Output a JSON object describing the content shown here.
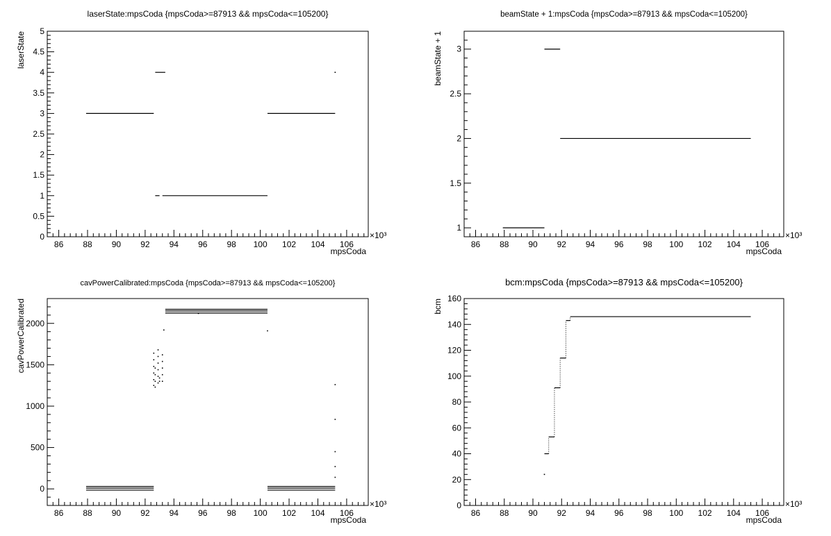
{
  "chart_data": [
    {
      "type": "scatter",
      "title": "laserState:mpsCoda {mpsCoda>=87913 && mpsCoda<=105200}",
      "xlabel": "mpsCoda",
      "ylabel": "laserState",
      "x_exponent": "×10³",
      "xlim": [
        85.2,
        107.5
      ],
      "ylim": [
        0,
        5
      ],
      "x_ticks": [
        86,
        88,
        90,
        92,
        94,
        96,
        98,
        100,
        102,
        104,
        106
      ],
      "y_ticks": [
        0,
        0.5,
        1,
        1.5,
        2,
        2.5,
        3,
        3.5,
        4,
        4.5,
        5
      ],
      "segments": [
        {
          "x": [
            87.9,
            92.6
          ],
          "y": 3
        },
        {
          "x": [
            92.7,
            93.4
          ],
          "y": 4
        },
        {
          "x": [
            92.7,
            93.0
          ],
          "y": 1
        },
        {
          "x": [
            93.2,
            100.5
          ],
          "y": 1
        },
        {
          "x": [
            100.5,
            105.2
          ],
          "y": 3
        }
      ],
      "points": [
        {
          "x": 105.2,
          "y": 4
        }
      ]
    },
    {
      "type": "scatter",
      "title": "beamState + 1:mpsCoda {mpsCoda>=87913 && mpsCoda<=105200}",
      "xlabel": "mpsCoda",
      "ylabel": "beamState + 1",
      "x_exponent": "×10³",
      "xlim": [
        85.2,
        107.5
      ],
      "ylim": [
        0.9,
        3.2
      ],
      "x_ticks": [
        86,
        88,
        90,
        92,
        94,
        96,
        98,
        100,
        102,
        104,
        106
      ],
      "y_ticks": [
        1,
        1.5,
        2,
        2.5,
        3
      ],
      "segments": [
        {
          "x": [
            87.9,
            90.8
          ],
          "y": 1
        },
        {
          "x": [
            90.8,
            91.9
          ],
          "y": 3
        },
        {
          "x": [
            91.9,
            105.2
          ],
          "y": 2
        }
      ],
      "points": []
    },
    {
      "type": "scatter",
      "title": "cavPowerCalibrated:mpsCoda {mpsCoda>=87913 && mpsCoda<=105200}",
      "xlabel": "mpsCoda",
      "ylabel": "cavPowerCalibrated",
      "x_exponent": "×10³",
      "xlim": [
        85.2,
        107.5
      ],
      "ylim": [
        -200,
        2300
      ],
      "x_ticks": [
        86,
        88,
        90,
        92,
        94,
        96,
        98,
        100,
        102,
        104,
        106
      ],
      "y_ticks": [
        0,
        500,
        1000,
        1500,
        2000
      ],
      "segments": [
        {
          "x": [
            87.9,
            92.6
          ],
          "y": 30
        },
        {
          "x": [
            87.9,
            92.6
          ],
          "y": 10
        },
        {
          "x": [
            87.9,
            92.6
          ],
          "y": -15
        },
        {
          "x": [
            93.4,
            100.5
          ],
          "y": 2170
        },
        {
          "x": [
            93.4,
            100.5
          ],
          "y": 2150
        },
        {
          "x": [
            93.4,
            100.5
          ],
          "y": 2125
        },
        {
          "x": [
            100.5,
            105.2
          ],
          "y": 30
        },
        {
          "x": [
            100.5,
            105.2
          ],
          "y": 10
        },
        {
          "x": [
            100.5,
            105.2
          ],
          "y": -15
        }
      ],
      "points": [
        {
          "x": 92.6,
          "y": 1250
        },
        {
          "x": 92.6,
          "y": 1320
        },
        {
          "x": 92.6,
          "y": 1400
        },
        {
          "x": 92.6,
          "y": 1480
        },
        {
          "x": 92.6,
          "y": 1560
        },
        {
          "x": 92.6,
          "y": 1640
        },
        {
          "x": 92.7,
          "y": 1230
        },
        {
          "x": 92.7,
          "y": 1300
        },
        {
          "x": 92.7,
          "y": 1380
        },
        {
          "x": 92.7,
          "y": 1460
        },
        {
          "x": 92.9,
          "y": 1280
        },
        {
          "x": 92.9,
          "y": 1360
        },
        {
          "x": 92.9,
          "y": 1440
        },
        {
          "x": 92.9,
          "y": 1520
        },
        {
          "x": 92.9,
          "y": 1600
        },
        {
          "x": 92.9,
          "y": 1680
        },
        {
          "x": 93.0,
          "y": 1300
        },
        {
          "x": 93.0,
          "y": 1340
        },
        {
          "x": 93.2,
          "y": 1300
        },
        {
          "x": 93.2,
          "y": 1380
        },
        {
          "x": 93.2,
          "y": 1460
        },
        {
          "x": 93.2,
          "y": 1540
        },
        {
          "x": 93.2,
          "y": 1620
        },
        {
          "x": 93.3,
          "y": 1920
        },
        {
          "x": 95.7,
          "y": 2120
        },
        {
          "x": 100.5,
          "y": 1910
        },
        {
          "x": 105.2,
          "y": 1260
        },
        {
          "x": 105.2,
          "y": 840
        },
        {
          "x": 105.2,
          "y": 450
        },
        {
          "x": 105.2,
          "y": 270
        },
        {
          "x": 105.2,
          "y": 140
        }
      ]
    },
    {
      "type": "scatter",
      "title": "bcm:mpsCoda {mpsCoda>=87913 && mpsCoda<=105200}",
      "xlabel": "mpsCoda",
      "ylabel": "bcm",
      "x_exponent": "×10³",
      "xlim": [
        85.2,
        107.5
      ],
      "ylim": [
        0,
        160
      ],
      "x_ticks": [
        86,
        88,
        90,
        92,
        94,
        96,
        98,
        100,
        102,
        104,
        106
      ],
      "y_ticks": [
        0,
        20,
        40,
        60,
        80,
        100,
        120,
        140,
        160
      ],
      "segments": [
        {
          "x": [
            90.8,
            91.1
          ],
          "y": 40
        },
        {
          "x": [
            91.1,
            91.5
          ],
          "y": 53
        },
        {
          "x": [
            91.5,
            91.9
          ],
          "y": 91
        },
        {
          "x": [
            91.9,
            92.3
          ],
          "y": 114
        },
        {
          "x": [
            92.3,
            92.6
          ],
          "y": 143
        },
        {
          "x": [
            92.6,
            105.2
          ],
          "y": 146
        }
      ],
      "steps": [
        {
          "x": 91.1,
          "y": [
            40,
            53
          ]
        },
        {
          "x": 91.5,
          "y": [
            53,
            91
          ]
        },
        {
          "x": 91.9,
          "y": [
            91,
            114
          ]
        },
        {
          "x": 92.3,
          "y": [
            114,
            143
          ]
        },
        {
          "x": 92.6,
          "y": [
            143,
            146
          ]
        }
      ],
      "points": [
        {
          "x": 90.8,
          "y": 24
        }
      ]
    }
  ]
}
